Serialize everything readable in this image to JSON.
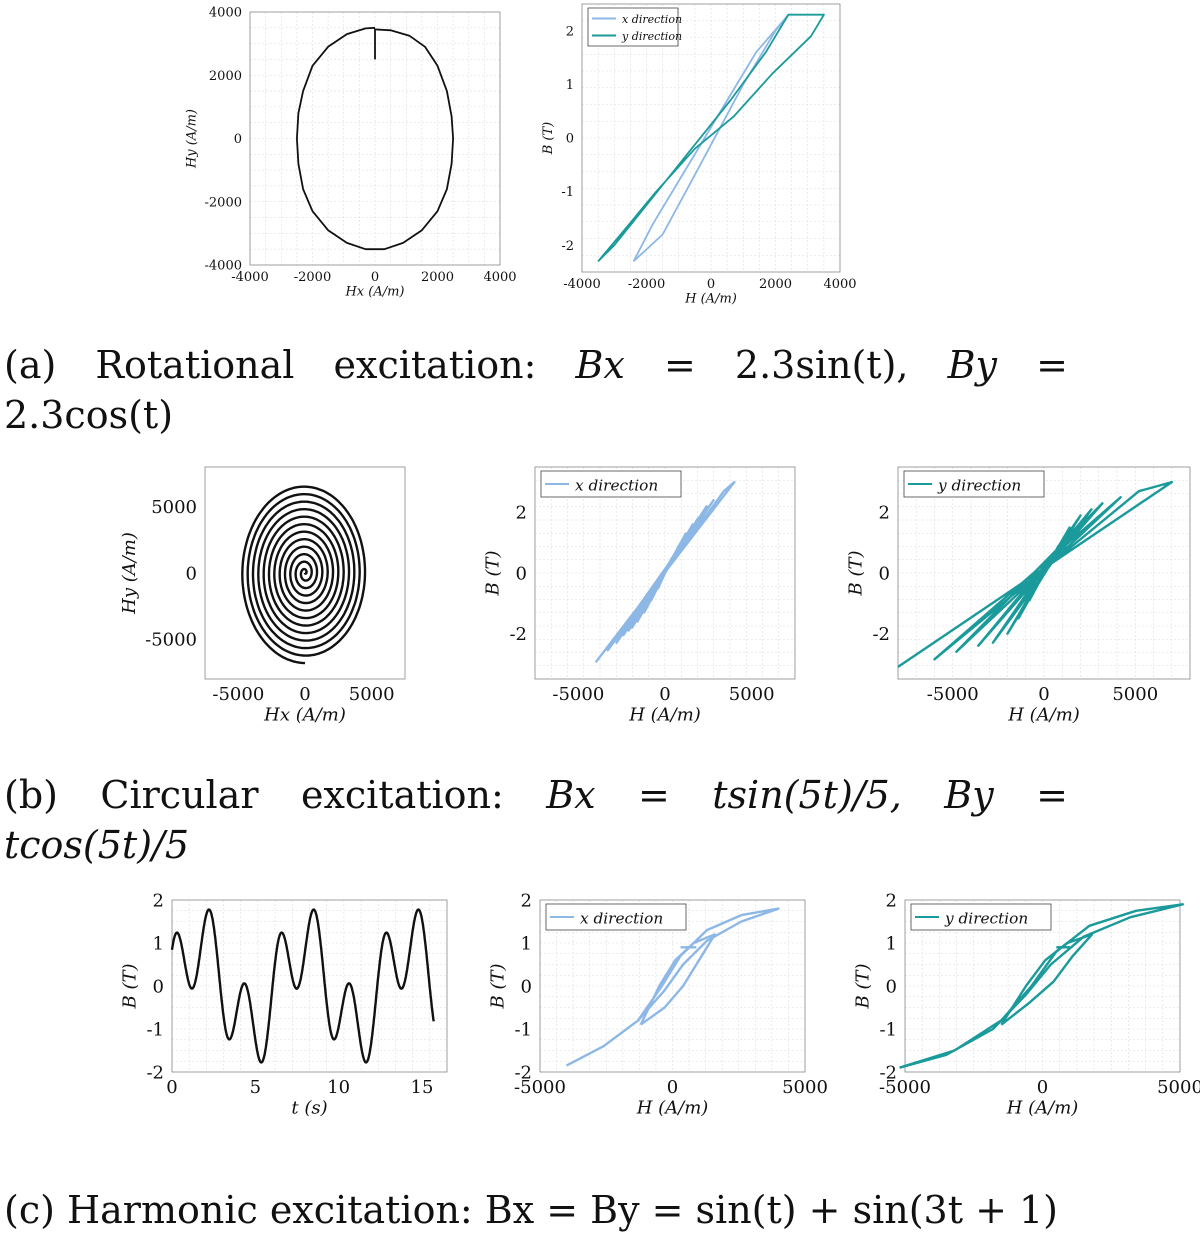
{
  "captions": {
    "a": {
      "line1": [
        "(a)",
        "Rotational",
        "excitation:",
        "Bx",
        "=",
        "2.3sin(t),",
        "By",
        "="
      ],
      "line2": "2.3cos(t)"
    },
    "b": {
      "line1": [
        "(b)",
        "Circular",
        "excitation:",
        "Bx",
        "=",
        "tsin(5t)/5,",
        "By",
        "="
      ],
      "line2": "tcos(5t)/5"
    },
    "c": {
      "text": "(c) Harmonic excitation: Bx = By = sin(t) + sin(3t + 1)"
    }
  },
  "colors": {
    "black": "#111111",
    "x_direction": "#8db8e6",
    "y_direction": "#1a9a9a",
    "grid": "#dddddd"
  },
  "chart_data": [
    {
      "id": "a1",
      "type": "line",
      "xlabel": "Hx (A/m)",
      "ylabel": "Hy (A/m)",
      "xlim": [
        -4000,
        4000
      ],
      "ylim": [
        -4000,
        4000
      ],
      "xticks": [
        -4000,
        -2000,
        0,
        2000,
        4000
      ],
      "yticks": [
        -4000,
        -2000,
        0,
        2000,
        4000
      ],
      "grid": true,
      "series": [
        {
          "name": "",
          "color": "#111111",
          "points": [
            [
              0,
              2500
            ],
            [
              0,
              3450
            ],
            [
              500,
              3420
            ],
            [
              1100,
              3250
            ],
            [
              1600,
              2900
            ],
            [
              2000,
              2300
            ],
            [
              2300,
              1500
            ],
            [
              2450,
              700
            ],
            [
              2500,
              0
            ],
            [
              2450,
              -800
            ],
            [
              2300,
              -1600
            ],
            [
              2000,
              -2300
            ],
            [
              1500,
              -2900
            ],
            [
              900,
              -3300
            ],
            [
              300,
              -3500
            ],
            [
              -300,
              -3500
            ],
            [
              -900,
              -3300
            ],
            [
              -1500,
              -2900
            ],
            [
              -2000,
              -2300
            ],
            [
              -2300,
              -1600
            ],
            [
              -2450,
              -800
            ],
            [
              -2500,
              0
            ],
            [
              -2450,
              800
            ],
            [
              -2300,
              1500
            ],
            [
              -2000,
              2300
            ],
            [
              -1500,
              2900
            ],
            [
              -900,
              3300
            ],
            [
              -300,
              3480
            ],
            [
              0,
              3500
            ]
          ]
        }
      ]
    },
    {
      "id": "a2",
      "type": "line",
      "xlabel": "H (A/m)",
      "ylabel": "B (T)",
      "xlim": [
        -4000,
        4000
      ],
      "ylim": [
        -2.5,
        2.5
      ],
      "xticks": [
        -4000,
        -2000,
        0,
        2000,
        4000
      ],
      "yticks": [
        -2,
        -1,
        0,
        1,
        2
      ],
      "grid": true,
      "legend": "top-left",
      "series": [
        {
          "name": "x direction",
          "color": "#8db8e6",
          "points": [
            [
              -2400,
              -2.3
            ],
            [
              -1800,
              -1.6
            ],
            [
              -1000,
              -0.8
            ],
            [
              -200,
              0
            ],
            [
              600,
              0.8
            ],
            [
              1400,
              1.6
            ],
            [
              2400,
              2.3
            ],
            [
              2000,
              2.0
            ],
            [
              1000,
              1.0
            ],
            [
              200,
              0.1
            ],
            [
              -600,
              -0.8
            ],
            [
              -1500,
              -1.8
            ],
            [
              -2400,
              -2.3
            ]
          ]
        },
        {
          "name": "y direction",
          "color": "#1a9a9a",
          "points": [
            [
              -3500,
              -2.3
            ],
            [
              -2800,
              -1.8
            ],
            [
              -1700,
              -1.0
            ],
            [
              -500,
              -0.2
            ],
            [
              700,
              0.4
            ],
            [
              1900,
              1.2
            ],
            [
              3100,
              1.9
            ],
            [
              3500,
              2.3
            ],
            [
              2400,
              2.3
            ],
            [
              1700,
              1.6
            ],
            [
              600,
              0.7
            ],
            [
              -600,
              -0.2
            ],
            [
              -1800,
              -1.1
            ],
            [
              -3000,
              -2.0
            ],
            [
              -3500,
              -2.3
            ]
          ]
        }
      ]
    },
    {
      "id": "b1",
      "type": "line",
      "xlabel": "Hx (A/m)",
      "ylabel": "Hy (A/m)",
      "xlim": [
        -7500,
        7500
      ],
      "ylim": [
        -8000,
        8000
      ],
      "xticks": [
        -5000,
        0,
        5000
      ],
      "yticks": [
        -5000,
        0,
        5000
      ],
      "grid": false,
      "series": [
        {
          "name": "",
          "color": "#111111",
          "spiral": {
            "a": 4800,
            "b": 6800,
            "turns": 12
          }
        }
      ]
    },
    {
      "id": "b2",
      "type": "line",
      "xlabel": "H (A/m)",
      "ylabel": "B (T)",
      "xlim": [
        -7500,
        7500
      ],
      "ylim": [
        -3.5,
        3.5
      ],
      "xticks": [
        -5000,
        0,
        5000
      ],
      "yticks": [
        -2,
        0,
        2
      ],
      "grid": true,
      "legend": "top-left",
      "series": [
        {
          "name": "x direction",
          "color": "#8db8e6",
          "points": [
            [
              -4000,
              -2.95
            ],
            [
              4000,
              3.0
            ],
            [
              3400,
              2.7
            ],
            [
              -3300,
              -2.55
            ],
            [
              2800,
              2.4
            ],
            [
              -2800,
              -2.3
            ],
            [
              2400,
              2.2
            ],
            [
              -2400,
              -2.05
            ],
            [
              2200,
              2.0
            ],
            [
              -2100,
              -1.9
            ],
            [
              1900,
              1.8
            ],
            [
              -1900,
              -1.8
            ],
            [
              1600,
              1.6
            ],
            [
              -1600,
              -1.6
            ],
            [
              1200,
              1.3
            ],
            [
              -1200,
              -1.3
            ],
            [
              800,
              0.9
            ],
            [
              -800,
              -0.9
            ],
            [
              400,
              0.5
            ],
            [
              -400,
              -0.5
            ],
            [
              0,
              0
            ]
          ]
        }
      ]
    },
    {
      "id": "b3",
      "type": "line",
      "xlabel": "H (A/m)",
      "ylabel": "B (T)",
      "xlim": [
        -8000,
        8000
      ],
      "ylim": [
        -3.5,
        3.5
      ],
      "xticks": [
        -5000,
        0,
        5000
      ],
      "yticks": [
        -2,
        0,
        2
      ],
      "grid": true,
      "legend": "top-left",
      "series": [
        {
          "name": "y direction",
          "color": "#1a9a9a",
          "points": [
            [
              -8000,
              -3.1
            ],
            [
              7000,
              3.0
            ],
            [
              5200,
              2.7
            ],
            [
              -6000,
              -2.85
            ],
            [
              4200,
              2.5
            ],
            [
              -4800,
              -2.6
            ],
            [
              3200,
              2.3
            ],
            [
              -3600,
              -2.4
            ],
            [
              2600,
              2.1
            ],
            [
              -2800,
              -2.3
            ],
            [
              2000,
              1.9
            ],
            [
              -2000,
              -2.0
            ],
            [
              1400,
              1.5
            ],
            [
              -1400,
              -1.5
            ],
            [
              800,
              0.9
            ],
            [
              -800,
              -0.9
            ],
            [
              0,
              0
            ]
          ]
        }
      ]
    },
    {
      "id": "c1",
      "type": "line",
      "xlabel": "t (s)",
      "ylabel": "B (T)",
      "xlim": [
        0,
        16.5
      ],
      "ylim": [
        -2,
        2
      ],
      "xticks": [
        0,
        5,
        10,
        15
      ],
      "yticks": [
        -2,
        -1,
        0,
        1,
        2
      ],
      "grid": true,
      "series": [
        {
          "name": "",
          "color": "#111111",
          "func": "sin(t)+sin(3t+1)",
          "trange": [
            0,
            15.7
          ]
        }
      ]
    },
    {
      "id": "c2",
      "type": "line",
      "xlabel": "H (A/m)",
      "ylabel": "B (T)",
      "xlim": [
        -5000,
        5000
      ],
      "ylim": [
        -2,
        2
      ],
      "xticks": [
        -5000,
        0,
        5000
      ],
      "yticks": [
        -2,
        -1,
        0,
        1,
        2
      ],
      "grid": true,
      "legend": "top-left",
      "series": [
        {
          "name": "x direction",
          "color": "#8db8e6",
          "loops": [
            [
              [
                -4000,
                -1.85
              ],
              [
                -2600,
                -1.4
              ],
              [
                -1300,
                -0.8
              ],
              [
                -300,
                -0.1
              ],
              [
                400,
                0.5
              ],
              [
                1300,
                1.05
              ],
              [
                2600,
                1.5
              ],
              [
                4000,
                1.8
              ],
              [
                2600,
                1.65
              ],
              [
                1300,
                1.3
              ],
              [
                300,
                0.7
              ],
              [
                -400,
                0.0
              ],
              [
                -1300,
                -0.8
              ],
              [
                -2600,
                -1.4
              ],
              [
                -4000,
                -1.85
              ]
            ],
            [
              [
                -1200,
                -0.9
              ],
              [
                -300,
                -0.5
              ],
              [
                400,
                0.0
              ],
              [
                1000,
                0.6
              ],
              [
                1600,
                1.2
              ],
              [
                800,
                1.0
              ],
              [
                100,
                0.6
              ],
              [
                -500,
                0.0
              ],
              [
                -1200,
                -0.9
              ]
            ],
            [
              [
                300,
                0.9
              ],
              [
                900,
                0.9
              ]
            ]
          ]
        }
      ]
    },
    {
      "id": "c3",
      "type": "line",
      "xlabel": "H (A/m)",
      "ylabel": "B (T)",
      "xlim": [
        -5000,
        5000
      ],
      "ylim": [
        -2,
        2
      ],
      "xticks": [
        -5000,
        0,
        5000
      ],
      "yticks": [
        -2,
        -1,
        0,
        1,
        2
      ],
      "grid": true,
      "legend": "top-left",
      "series": [
        {
          "name": "y direction",
          "color": "#1a9a9a",
          "loops": [
            [
              [
                -5200,
                -1.9
              ],
              [
                -3500,
                -1.6
              ],
              [
                -1800,
                -1.0
              ],
              [
                -600,
                -0.2
              ],
              [
                300,
                0.5
              ],
              [
                1500,
                1.15
              ],
              [
                3200,
                1.6
              ],
              [
                5100,
                1.9
              ],
              [
                3400,
                1.75
              ],
              [
                1700,
                1.4
              ],
              [
                500,
                0.8
              ],
              [
                -400,
                0.0
              ],
              [
                -1500,
                -0.8
              ],
              [
                -3200,
                -1.5
              ],
              [
                -5200,
                -1.9
              ]
            ],
            [
              [
                -1500,
                -0.9
              ],
              [
                -500,
                -0.4
              ],
              [
                400,
                0.1
              ],
              [
                1100,
                0.7
              ],
              [
                1800,
                1.2
              ],
              [
                900,
                1.0
              ],
              [
                100,
                0.6
              ],
              [
                -600,
                0.0
              ],
              [
                -1500,
                -0.9
              ]
            ],
            [
              [
                500,
                0.9
              ],
              [
                1000,
                0.9
              ]
            ]
          ]
        }
      ]
    }
  ]
}
